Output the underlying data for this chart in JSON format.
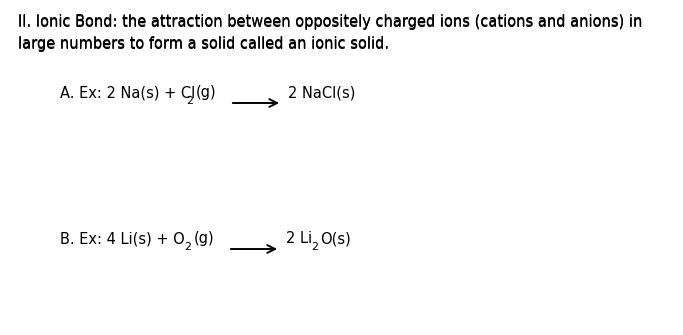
{
  "bg_color": "#ffffff",
  "text_color": "#000000",
  "font_size_main": 10.5,
  "font_size_reaction": 10.5,
  "fig_width": 6.83,
  "fig_height": 3.35,
  "title_line1": "II. Ionic Bond: the attraction between oppositely charged ions (cations and anions) in",
  "title_line2": "large numbers to form a solid called an ionic solid.",
  "rxnA_left": "A. Ex: 2 Na(s) + Cl",
  "rxnA_sub1": "2",
  "rxnA_mid": "(g)",
  "rxnA_right": "2 NaCl(s)",
  "rxnB_left": "B. Ex: 4 Li(s) + O",
  "rxnB_sub1": "2",
  "rxnB_mid": "(g)",
  "rxnB_right_pre": "2 Li",
  "rxnB_sub2": "2",
  "rxnB_right_post": "O(s)"
}
